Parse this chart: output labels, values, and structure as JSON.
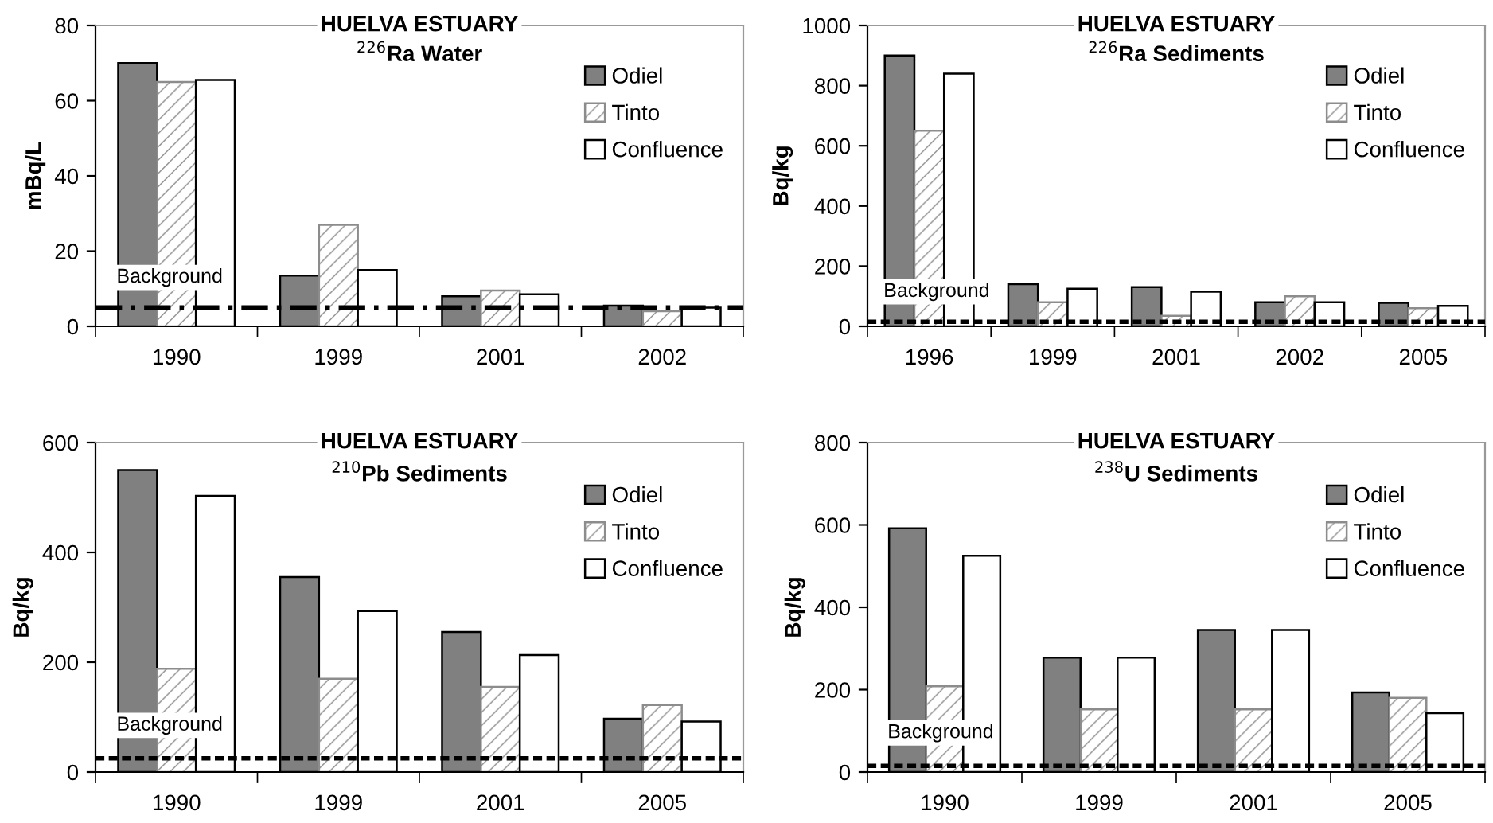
{
  "chart_data": [
    {
      "type": "bar",
      "title": "HUELVA ESTUARY",
      "subtitle": "$^{226}$Ra Water",
      "ylabel": "mBq/L",
      "categories": [
        "1990",
        "1999",
        "2001",
        "2002"
      ],
      "ylim": [
        0,
        80
      ],
      "yticks": [
        0,
        20,
        40,
        60,
        80
      ],
      "grid": false,
      "legend": "top right",
      "series": [
        {
          "name": "Odiel",
          "color": "#808080",
          "values": [
            70,
            13.5,
            8,
            5.5
          ]
        },
        {
          "name": "Tinto",
          "color": "#8c8c8c",
          "values": [
            65,
            27,
            9.5,
            4
          ]
        },
        {
          "name": "Confluence",
          "color": "#ffffff",
          "values": [
            65.5,
            15,
            8.5,
            5
          ]
        }
      ],
      "ref_lines": [
        {
          "axis": "y",
          "value": 5,
          "label": "Background",
          "color": "#000000",
          "line_style": "dashed"
        }
      ]
    },
    {
      "type": "bar",
      "title": "HUELVA ESTUARY",
      "subtitle": "$^{226}$Ra Sediments",
      "ylabel": "Bq/kg",
      "categories": [
        "1996",
        "1999",
        "2001",
        "2002",
        "2005"
      ],
      "ylim": [
        0,
        1000
      ],
      "yticks": [
        0,
        200,
        400,
        600,
        800,
        1000
      ],
      "grid": false,
      "legend": "top right",
      "series": [
        {
          "name": "Odiel",
          "color": "#808080",
          "values": [
            900,
            140,
            130,
            80,
            78
          ]
        },
        {
          "name": "Tinto",
          "color": "#8c8c8c",
          "values": [
            650,
            80,
            35,
            100,
            60
          ]
        },
        {
          "name": "Confluence",
          "color": "#ffffff",
          "values": [
            840,
            125,
            115,
            80,
            68
          ]
        }
      ],
      "ref_lines": [
        {
          "axis": "y",
          "value": 15,
          "label": "Background",
          "color": "#000000",
          "line_style": "dotted"
        }
      ]
    },
    {
      "type": "bar",
      "title": "HUELVA ESTUARY",
      "subtitle": "$^{210}$Pb Sediments",
      "ylabel": "Bq/kg",
      "categories": [
        "1990",
        "1999",
        "2001",
        "2005"
      ],
      "ylim": [
        0,
        600
      ],
      "yticks": [
        0,
        200,
        400,
        600
      ],
      "grid": false,
      "legend": "top right",
      "series": [
        {
          "name": "Odiel",
          "color": "#808080",
          "values": [
            550,
            355,
            255,
            97
          ]
        },
        {
          "name": "Tinto",
          "color": "#8c8c8c",
          "values": [
            188,
            170,
            155,
            122
          ]
        },
        {
          "name": "Confluence",
          "color": "#ffffff",
          "values": [
            503,
            293,
            213,
            92
          ]
        }
      ],
      "ref_lines": [
        {
          "axis": "y",
          "value": 25,
          "label": "Background",
          "color": "#000000",
          "line_style": "dotted"
        }
      ]
    },
    {
      "type": "bar",
      "title": "HUELVA ESTUARY",
      "subtitle": "$^{238}$U Sediments",
      "ylabel": "Bq/kg",
      "categories": [
        "1990",
        "1999",
        "2001",
        "2005"
      ],
      "ylim": [
        0,
        800
      ],
      "yticks": [
        0,
        200,
        400,
        600,
        800
      ],
      "grid": false,
      "legend": "top right",
      "series": [
        {
          "name": "Odiel",
          "color": "#808080",
          "values": [
            592,
            278,
            345,
            193
          ]
        },
        {
          "name": "Tinto",
          "color": "#8c8c8c",
          "values": [
            208,
            152,
            152,
            180
          ]
        },
        {
          "name": "Confluence",
          "color": "#ffffff",
          "values": [
            525,
            278,
            345,
            143
          ]
        }
      ],
      "ref_lines": [
        {
          "axis": "y",
          "value": 15,
          "label": "Background",
          "color": "#000000",
          "line_style": "dotted"
        }
      ]
    }
  ]
}
